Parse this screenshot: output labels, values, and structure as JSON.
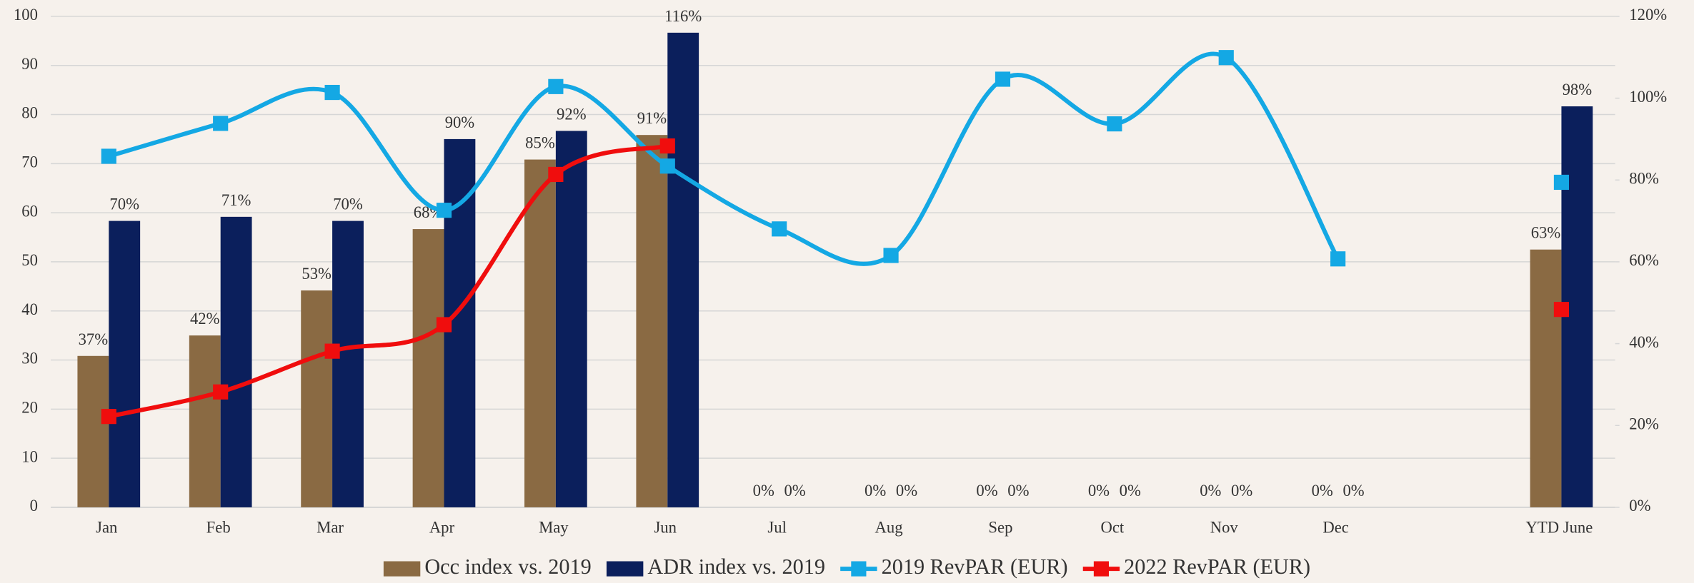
{
  "chart_data": {
    "type": "bar",
    "categories": [
      "Jan",
      "Feb",
      "Mar",
      "Apr",
      "May",
      "Jun",
      "Jul",
      "Aug",
      "Sep",
      "Oct",
      "Nov",
      "Dec",
      null,
      "YTD June"
    ],
    "series": [
      {
        "name": "Occ index vs. 2019",
        "type": "bar",
        "axis": "y2",
        "color": "#8a6a43",
        "values": [
          37,
          42,
          53,
          68,
          85,
          91,
          0,
          0,
          0,
          0,
          0,
          0,
          null,
          63
        ],
        "value_labels": [
          "37%",
          "42%",
          "53%",
          "68%",
          "85%",
          "91%",
          "0%",
          "0%",
          "0%",
          "0%",
          "0%",
          "0%",
          null,
          "63%"
        ]
      },
      {
        "name": "ADR index vs. 2019",
        "type": "bar",
        "axis": "y2",
        "color": "#0b1f5c",
        "values": [
          70,
          71,
          70,
          90,
          92,
          116,
          0,
          0,
          0,
          0,
          0,
          0,
          null,
          98
        ],
        "value_labels": [
          "70%",
          "71%",
          "70%",
          "90%",
          "92%",
          "116%",
          "0%",
          "0%",
          "0%",
          "0%",
          "0%",
          "0%",
          null,
          "98%"
        ]
      },
      {
        "name": "2019 RevPAR (EUR)",
        "type": "line",
        "axis": "y",
        "color": "#14a8e4",
        "values": [
          71.5,
          78.2,
          84.5,
          60.5,
          85.7,
          69.5,
          56.7,
          51.3,
          87.2,
          78.1,
          91.6,
          50.6,
          null,
          66.2
        ]
      },
      {
        "name": "2022 RevPAR (EUR)",
        "type": "line",
        "axis": "y",
        "color": "#f00d0d",
        "values": [
          18.5,
          23.5,
          31.8,
          37.2,
          67.8,
          73.6,
          null,
          null,
          null,
          null,
          null,
          null,
          null,
          40.3
        ]
      }
    ],
    "ylim": [
      0,
      100
    ],
    "yticks": [
      0,
      10,
      20,
      30,
      40,
      50,
      60,
      70,
      80,
      90,
      100
    ],
    "y2lim": [
      0,
      120
    ],
    "y2ticks": [
      {
        "value": 0,
        "label": "0%"
      },
      {
        "value": 20,
        "label": "20%"
      },
      {
        "value": 40,
        "label": "40%"
      },
      {
        "value": 60,
        "label": "60%"
      },
      {
        "value": 80,
        "label": "80%"
      },
      {
        "value": 100,
        "label": "100%"
      },
      {
        "value": 120,
        "label": "120%"
      }
    ],
    "grid": true,
    "legend": "bottom",
    "smooth": true
  }
}
